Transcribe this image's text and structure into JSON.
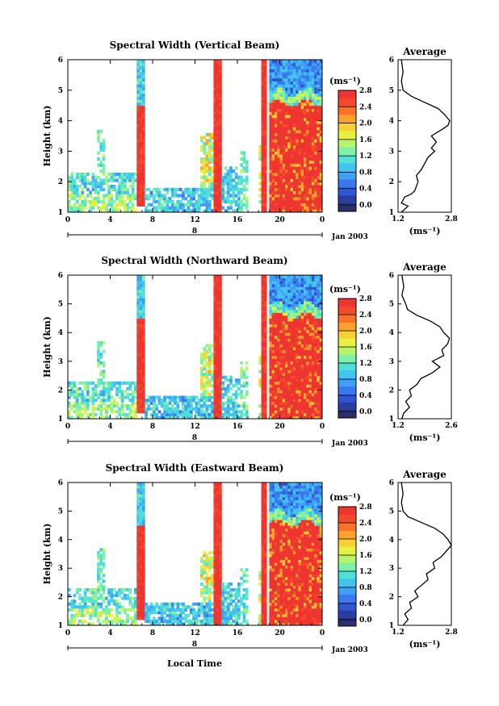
{
  "figure": {
    "date_label": "Jan 2003",
    "date_day": "8",
    "xlabel": "Local Time",
    "colorbar_unit": "(ms⁻¹)",
    "profile_unit": "(ms⁻¹)",
    "profile_title": "Average",
    "height_label": "Height (km)"
  },
  "colors": {
    "colormap": [
      "#2c2f6e",
      "#2a3ea0",
      "#2f57d4",
      "#3a78f0",
      "#3fa0f5",
      "#42c4ef",
      "#4fe0d6",
      "#7ef0a8",
      "#b6f56a",
      "#e5f040",
      "#f8d032",
      "#fba22c",
      "#f8722c",
      "#f24a2c",
      "#ee3530"
    ]
  },
  "chart_data": [
    {
      "type": "heatmap",
      "title": "Spectral Width (Vertical Beam)",
      "ylabel": "Height (km)",
      "x_ticks": [
        "0",
        "4",
        "8",
        "12",
        "16",
        "20",
        "0"
      ],
      "xlim": [
        0,
        24
      ],
      "y_ticks": [
        "1",
        "2",
        "3",
        "4",
        "5",
        "6"
      ],
      "ylim": [
        1,
        6
      ],
      "colorbar_ticks": [
        "0.0",
        "0.4",
        "0.8",
        "1.2",
        "1.6",
        "2.0",
        "2.4",
        "2.8"
      ],
      "colorbar_range": [
        0,
        2.8
      ],
      "profile": {
        "title": "Average",
        "xlabel": "(ms⁻¹)",
        "x_ticks": [
          "1.2",
          "2.8"
        ],
        "xlim": [
          1.2,
          2.8
        ],
        "y_ticks": [
          "1",
          "2",
          "3",
          "4",
          "5",
          "6"
        ],
        "ylim": [
          1,
          6
        ],
        "points": [
          [
            1.3,
            1.0
          ],
          [
            1.5,
            1.2
          ],
          [
            1.3,
            1.3
          ],
          [
            1.4,
            1.5
          ],
          [
            1.6,
            1.6
          ],
          [
            1.7,
            1.7
          ],
          [
            1.8,
            2.0
          ],
          [
            1.75,
            2.2
          ],
          [
            1.9,
            2.4
          ],
          [
            2.0,
            2.6
          ],
          [
            2.1,
            2.8
          ],
          [
            2.3,
            3.0
          ],
          [
            2.2,
            3.1
          ],
          [
            2.35,
            3.3
          ],
          [
            2.2,
            3.5
          ],
          [
            2.5,
            3.7
          ],
          [
            2.7,
            3.85
          ],
          [
            2.75,
            4.0
          ],
          [
            2.6,
            4.2
          ],
          [
            2.4,
            4.4
          ],
          [
            2.0,
            4.6
          ],
          [
            1.6,
            4.8
          ],
          [
            1.35,
            5.0
          ],
          [
            1.3,
            5.3
          ],
          [
            1.35,
            5.6
          ],
          [
            1.3,
            6.0
          ]
        ]
      }
    },
    {
      "type": "heatmap",
      "title": "Spectral Width (Northward Beam)",
      "ylabel": "Height (km)",
      "x_ticks": [
        "0",
        "4",
        "8",
        "12",
        "16",
        "20",
        "0"
      ],
      "xlim": [
        0,
        24
      ],
      "y_ticks": [
        "1",
        "2",
        "3",
        "4",
        "5",
        "6"
      ],
      "ylim": [
        1,
        6
      ],
      "colorbar_ticks": [
        "0.0",
        "0.4",
        "0.8",
        "1.2",
        "1.6",
        "2.0",
        "2.4",
        "2.8"
      ],
      "colorbar_range": [
        0,
        2.8
      ],
      "profile": {
        "title": "Average",
        "xlabel": "(ms⁻¹)",
        "x_ticks": [
          "1.2",
          "2.6"
        ],
        "xlim": [
          1.2,
          2.6
        ],
        "y_ticks": [
          "1",
          "2",
          "3",
          "4",
          "5",
          "6"
        ],
        "ylim": [
          1,
          6
        ],
        "points": [
          [
            1.3,
            1.0
          ],
          [
            1.35,
            1.2
          ],
          [
            1.5,
            1.4
          ],
          [
            1.4,
            1.6
          ],
          [
            1.55,
            1.8
          ],
          [
            1.5,
            2.0
          ],
          [
            1.7,
            2.2
          ],
          [
            1.8,
            2.4
          ],
          [
            2.1,
            2.6
          ],
          [
            2.3,
            2.8
          ],
          [
            2.1,
            3.0
          ],
          [
            2.4,
            3.2
          ],
          [
            2.35,
            3.4
          ],
          [
            2.5,
            3.6
          ],
          [
            2.55,
            3.8
          ],
          [
            2.4,
            4.0
          ],
          [
            2.3,
            4.2
          ],
          [
            2.05,
            4.4
          ],
          [
            1.7,
            4.6
          ],
          [
            1.45,
            4.8
          ],
          [
            1.4,
            5.0
          ],
          [
            1.3,
            5.3
          ],
          [
            1.35,
            5.6
          ],
          [
            1.3,
            6.0
          ]
        ]
      }
    },
    {
      "type": "heatmap",
      "title": "Spectral Width (Eastward Beam)",
      "ylabel": "Height (km)",
      "x_ticks": [
        "0",
        "4",
        "8",
        "12",
        "16",
        "20",
        "0"
      ],
      "xlim": [
        0,
        24
      ],
      "y_ticks": [
        "1",
        "2",
        "3",
        "4",
        "5",
        "6"
      ],
      "ylim": [
        1,
        6
      ],
      "colorbar_ticks": [
        "0.0",
        "0.4",
        "0.8",
        "1.2",
        "1.6",
        "2.0",
        "2.4",
        "2.8"
      ],
      "colorbar_range": [
        0,
        2.8
      ],
      "profile": {
        "title": "Average",
        "xlabel": "(ms⁻¹)",
        "x_ticks": [
          "1.2",
          "2.8"
        ],
        "xlim": [
          1.2,
          2.8
        ],
        "y_ticks": [
          "1",
          "2",
          "3",
          "4",
          "5",
          "6"
        ],
        "ylim": [
          1,
          6
        ],
        "points": [
          [
            1.35,
            1.0
          ],
          [
            1.5,
            1.2
          ],
          [
            1.4,
            1.4
          ],
          [
            1.6,
            1.6
          ],
          [
            1.55,
            1.8
          ],
          [
            1.8,
            2.0
          ],
          [
            1.7,
            2.2
          ],
          [
            1.9,
            2.4
          ],
          [
            2.1,
            2.6
          ],
          [
            2.05,
            2.8
          ],
          [
            2.3,
            3.0
          ],
          [
            2.25,
            3.2
          ],
          [
            2.5,
            3.4
          ],
          [
            2.65,
            3.6
          ],
          [
            2.8,
            3.8
          ],
          [
            2.7,
            4.0
          ],
          [
            2.55,
            4.2
          ],
          [
            2.3,
            4.4
          ],
          [
            1.9,
            4.6
          ],
          [
            1.5,
            4.8
          ],
          [
            1.35,
            5.0
          ],
          [
            1.3,
            5.3
          ],
          [
            1.35,
            5.6
          ],
          [
            1.3,
            6.0
          ]
        ]
      }
    }
  ]
}
